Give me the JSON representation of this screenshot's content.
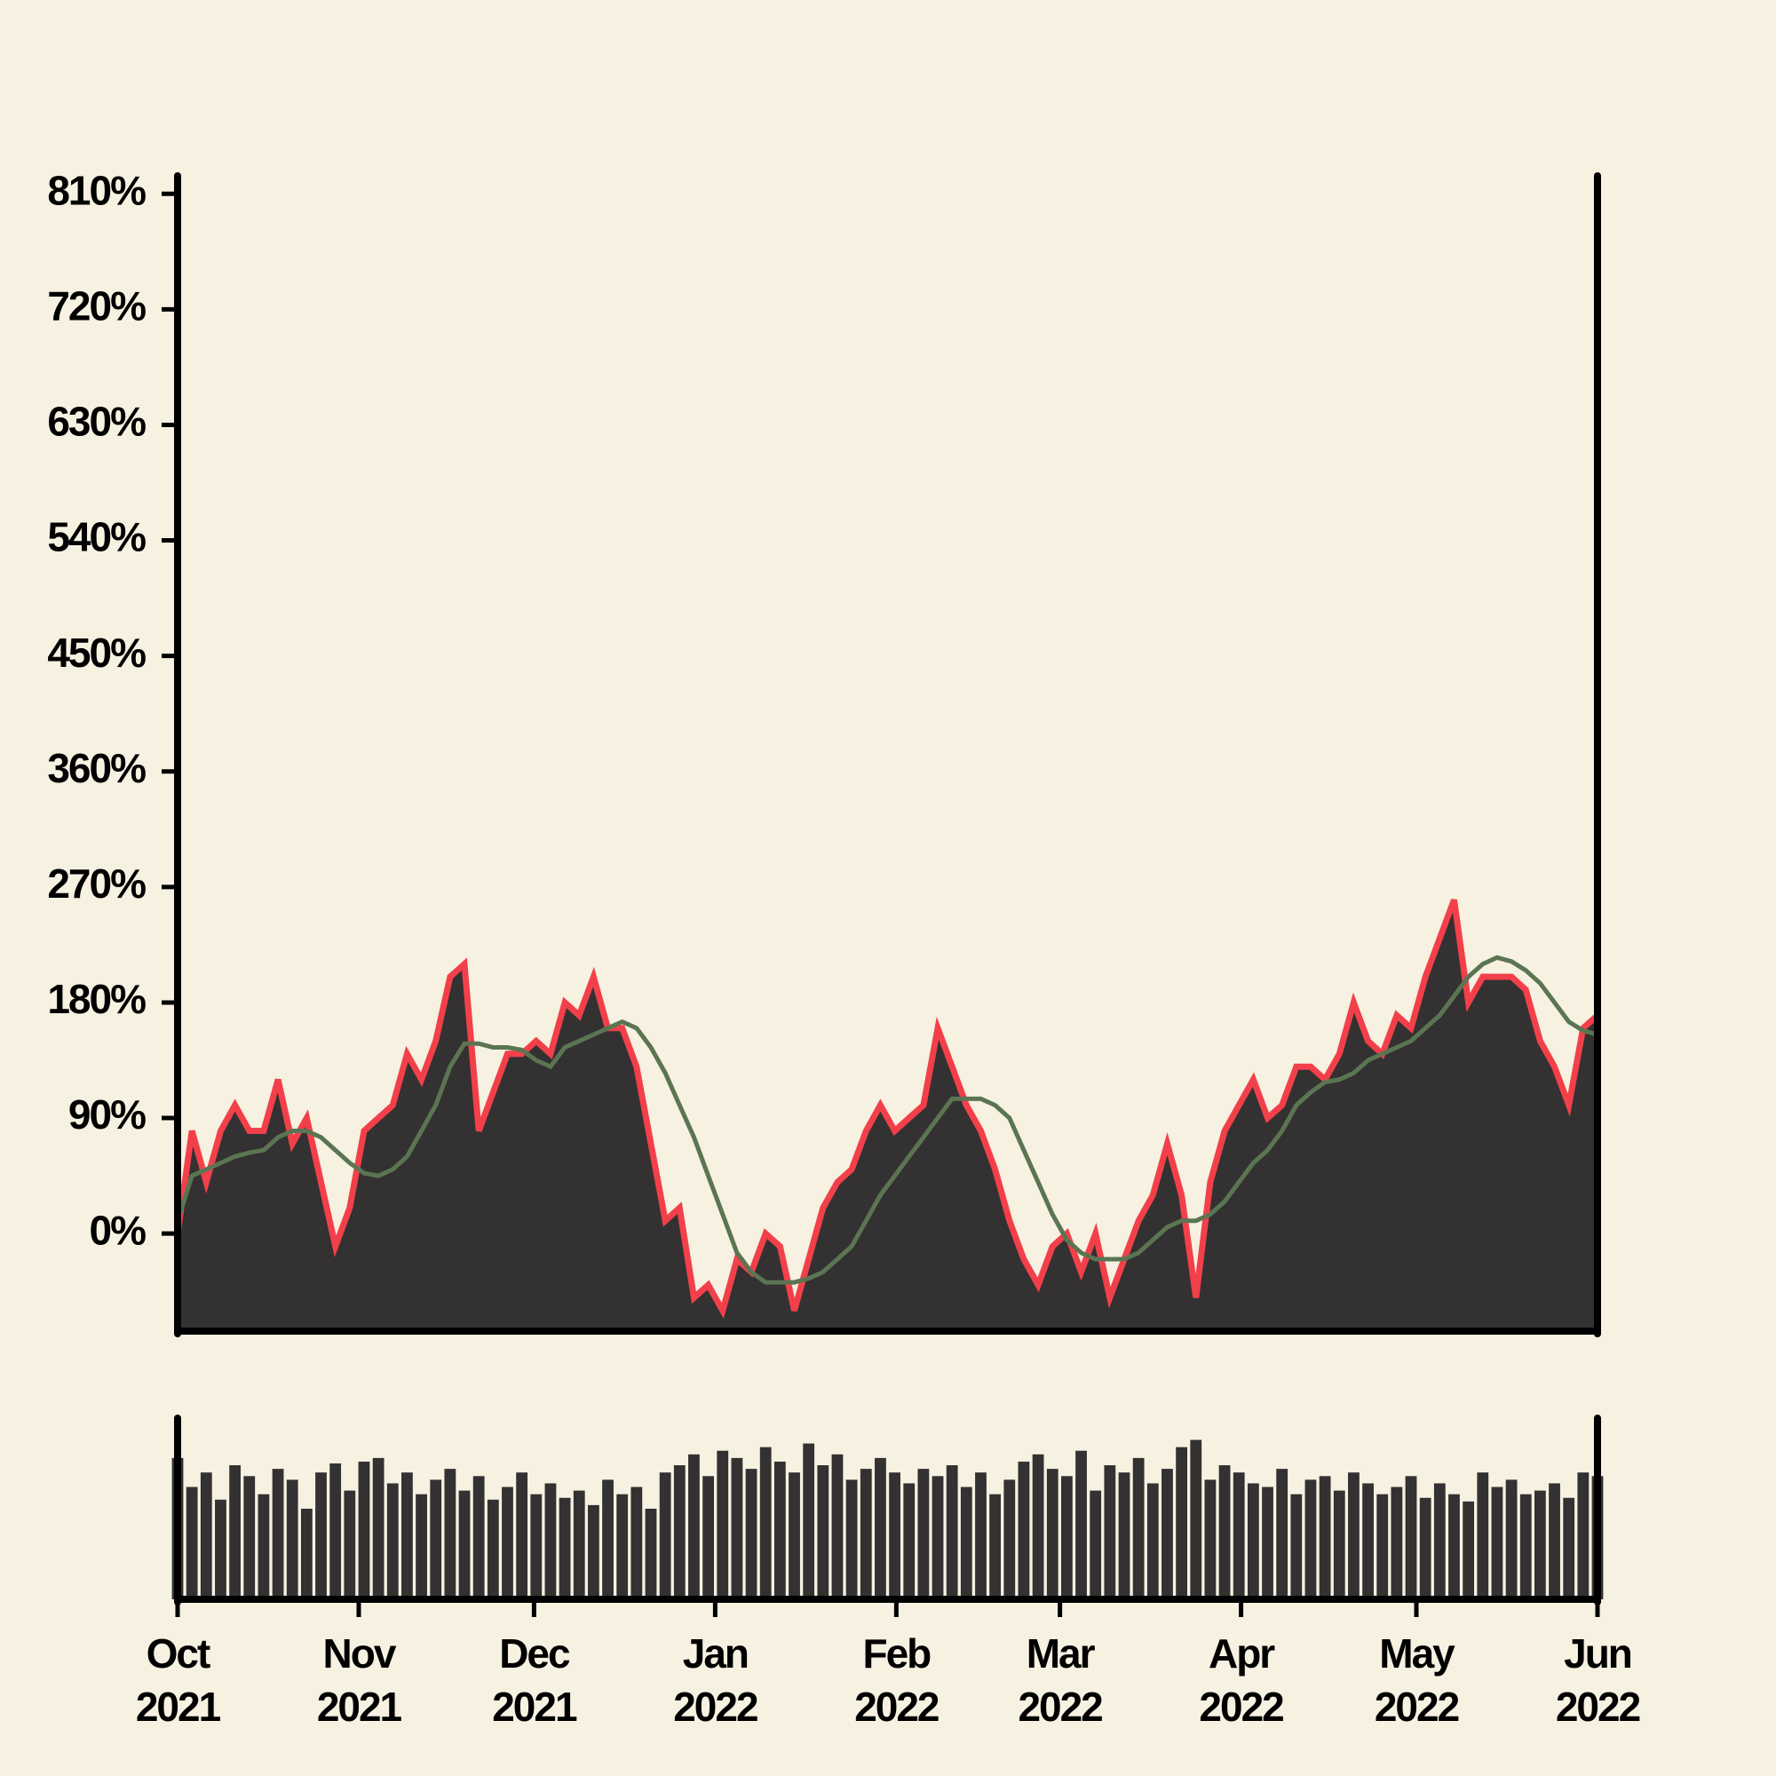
{
  "chart_data": [
    {
      "type": "area",
      "xlim": [
        "2021-10",
        "2022-06"
      ],
      "ylim": [
        -76,
        824
      ],
      "yticks": [
        {
          "value": 0,
          "label": "0%"
        },
        {
          "value": 90,
          "label": "90%"
        },
        {
          "value": 180,
          "label": "180%"
        },
        {
          "value": 270,
          "label": "270%"
        },
        {
          "value": 360,
          "label": "360%"
        },
        {
          "value": 450,
          "label": "450%"
        },
        {
          "value": 540,
          "label": "540%"
        },
        {
          "value": 630,
          "label": "630%"
        },
        {
          "value": 720,
          "label": "720%"
        },
        {
          "value": 810,
          "label": "810%"
        }
      ],
      "series": [
        {
          "color": "#f2404b",
          "fill": "#333131",
          "values": [
            0,
            80,
            40,
            80,
            100,
            80,
            80,
            120,
            70,
            90,
            40,
            -10,
            20,
            80,
            90,
            100,
            140,
            120,
            150,
            200,
            210,
            80,
            110,
            140,
            140,
            150,
            140,
            180,
            170,
            200,
            160,
            160,
            130,
            70,
            10,
            20,
            -50,
            -40,
            -60,
            -20,
            -30,
            0,
            -10,
            -60,
            -20,
            20,
            40,
            50,
            80,
            100,
            80,
            90,
            100,
            160,
            130,
            100,
            80,
            50,
            10,
            -20,
            -40,
            -10,
            0,
            -30,
            0,
            -50,
            -20,
            10,
            30,
            70,
            30,
            -50,
            40,
            80,
            100,
            120,
            90,
            100,
            130,
            130,
            120,
            140,
            180,
            150,
            140,
            170,
            160,
            200,
            230,
            260,
            180,
            200,
            200,
            200,
            190,
            150,
            130,
            100,
            160,
            170
          ]
        },
        {
          "color": "#5b7553",
          "values": [
            10,
            45,
            50,
            55,
            60,
            63,
            65,
            75,
            80,
            80,
            75,
            65,
            55,
            47,
            45,
            50,
            60,
            80,
            100,
            130,
            148,
            148,
            145,
            145,
            143,
            135,
            130,
            145,
            150,
            155,
            160,
            165,
            160,
            145,
            125,
            100,
            75,
            45,
            15,
            -15,
            -30,
            -38,
            -38,
            -38,
            -35,
            -30,
            -20,
            -10,
            10,
            30,
            45,
            60,
            75,
            90,
            105,
            105,
            105,
            100,
            90,
            65,
            40,
            15,
            -5,
            -15,
            -20,
            -20,
            -20,
            -15,
            -5,
            5,
            10,
            10,
            15,
            25,
            40,
            55,
            65,
            80,
            100,
            110,
            118,
            120,
            125,
            135,
            140,
            145,
            150,
            160,
            170,
            185,
            200,
            210,
            215,
            212,
            205,
            195,
            180,
            165,
            158,
            155
          ]
        }
      ]
    },
    {
      "type": "bar",
      "xlim": [
        "2021-10",
        "2022-06"
      ],
      "xticks": [
        {
          "value": "2021-10",
          "label": "Oct 2021"
        },
        {
          "value": "2021-11",
          "label": "Nov 2021"
        },
        {
          "value": "2021-12",
          "label": "Dec 2021"
        },
        {
          "value": "2022-01",
          "label": "Jan 2022"
        },
        {
          "value": "2022-02",
          "label": "Feb 2022"
        },
        {
          "value": "2022-03",
          "label": "Mar 2022"
        },
        {
          "value": "2022-04",
          "label": "Apr 2022"
        },
        {
          "value": "2022-05",
          "label": "May 2022"
        },
        {
          "value": "2022-06",
          "label": "Jun 2022"
        }
      ],
      "ylim": [
        0,
        100
      ],
      "color": "#333131",
      "values": [
        78,
        62,
        70,
        55,
        74,
        68,
        58,
        72,
        66,
        50,
        70,
        75,
        60,
        76,
        78,
        64,
        70,
        58,
        66,
        72,
        60,
        68,
        55,
        62,
        70,
        58,
        64,
        56,
        60,
        52,
        66,
        58,
        62,
        50,
        70,
        74,
        80,
        68,
        82,
        78,
        72,
        84,
        76,
        70,
        86,
        74,
        80,
        66,
        72,
        78,
        70,
        64,
        72,
        68,
        74,
        62,
        70,
        58,
        66,
        76,
        80,
        72,
        68,
        82,
        60,
        74,
        70,
        78,
        64,
        72,
        84,
        88,
        66,
        74,
        70,
        64,
        62,
        72,
        58,
        66,
        68,
        60,
        70,
        64,
        58,
        62,
        68,
        56,
        64,
        58,
        54,
        70,
        62,
        66,
        58,
        60,
        64,
        56,
        70,
        68
      ]
    }
  ]
}
